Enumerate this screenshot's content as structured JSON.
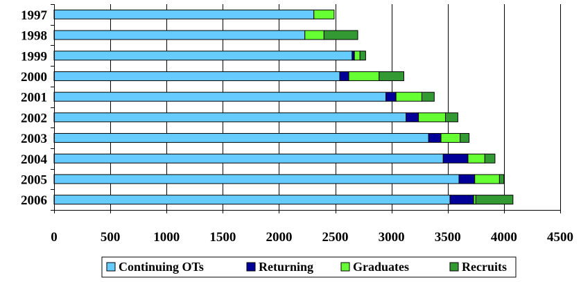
{
  "chart_data": {
    "type": "bar",
    "orientation": "horizontal",
    "stacked": true,
    "title": "",
    "xlabel": "",
    "ylabel": "",
    "categories": [
      "1997",
      "1998",
      "1999",
      "2000",
      "2001",
      "2002",
      "2003",
      "2004",
      "2005",
      "2006"
    ],
    "series": [
      {
        "name": "Continuing OTs",
        "color": "#66CCFF",
        "values": [
          2310,
          2230,
          2650,
          2540,
          2950,
          3130,
          3330,
          3460,
          3600,
          3520
        ]
      },
      {
        "name": "Returning",
        "color": "#000099",
        "values": [
          0,
          0,
          20,
          80,
          90,
          110,
          110,
          220,
          140,
          210
        ]
      },
      {
        "name": "Graduates",
        "color": "#66FF33",
        "values": [
          180,
          170,
          50,
          270,
          230,
          240,
          170,
          150,
          220,
          20
        ]
      },
      {
        "name": "Recruits",
        "color": "#339933",
        "values": [
          0,
          300,
          50,
          220,
          110,
          110,
          80,
          90,
          40,
          330
        ]
      }
    ],
    "xlim": [
      0,
      4500
    ],
    "xticks": [
      0,
      500,
      1000,
      1500,
      2000,
      2500,
      3000,
      3500,
      4000,
      4500
    ],
    "grid": "vertical",
    "legend": "bottom"
  }
}
